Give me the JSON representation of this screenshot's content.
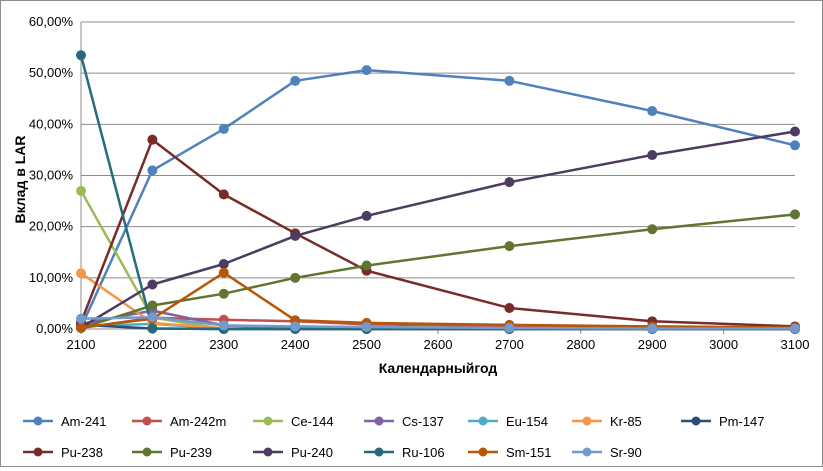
{
  "chart_data": {
    "type": "line",
    "title": "",
    "xlabel": "Календарныйгод",
    "ylabel": "Вклад в LAR",
    "x_ticks": [
      2100,
      2200,
      2300,
      2400,
      2500,
      2600,
      2700,
      2800,
      2900,
      3000,
      3100
    ],
    "y_ticks": [
      "0,00%",
      "10,00%",
      "20,00%",
      "30,00%",
      "40,00%",
      "50,00%",
      "60,00%"
    ],
    "xlim": [
      2100,
      3100
    ],
    "ylim": [
      0,
      60
    ],
    "y_unit": "%",
    "grid": "horizontal",
    "legend_position": "bottom",
    "series": [
      {
        "name": "Am-241",
        "color": "#4f81bd",
        "points": [
          [
            2100,
            0.3
          ],
          [
            2200,
            31.0
          ],
          [
            2300,
            39.1
          ],
          [
            2400,
            48.5
          ],
          [
            2500,
            50.6
          ],
          [
            2700,
            48.5
          ],
          [
            2900,
            42.6
          ],
          [
            3100,
            35.9
          ]
        ]
      },
      {
        "name": "Am-242m",
        "color": "#c0504d",
        "points": [
          [
            2100,
            0.2
          ],
          [
            2200,
            2.2
          ],
          [
            2300,
            1.8
          ],
          [
            2400,
            1.5
          ],
          [
            2500,
            0.9
          ],
          [
            2700,
            0.6
          ],
          [
            2900,
            0.4
          ],
          [
            3100,
            0.3
          ]
        ]
      },
      {
        "name": "Ce-144",
        "color": "#9bbb59",
        "points": [
          [
            2100,
            27.0
          ],
          [
            2200,
            2.2
          ],
          [
            2300,
            0.0
          ],
          [
            2400,
            0.0
          ],
          [
            2500,
            0.0
          ],
          [
            2700,
            0.0
          ],
          [
            2900,
            0.0
          ],
          [
            3100,
            0.0
          ]
        ]
      },
      {
        "name": "Cs-137",
        "color": "#8064a2",
        "points": [
          [
            2100,
            1.0
          ],
          [
            2200,
            3.6
          ],
          [
            2300,
            0.7
          ],
          [
            2400,
            0.1
          ],
          [
            2500,
            0.0
          ],
          [
            2700,
            0.0
          ],
          [
            2900,
            0.0
          ],
          [
            3100,
            0.0
          ]
        ]
      },
      {
        "name": "Eu-154",
        "color": "#4bacc6",
        "points": [
          [
            2100,
            0.5
          ],
          [
            2200,
            1.0
          ],
          [
            2300,
            0.1
          ],
          [
            2400,
            0.0
          ],
          [
            2500,
            0.0
          ],
          [
            2700,
            0.0
          ],
          [
            2900,
            0.0
          ],
          [
            3100,
            0.0
          ]
        ]
      },
      {
        "name": "Kr-85",
        "color": "#f79646",
        "points": [
          [
            2100,
            10.9
          ],
          [
            2200,
            1.2
          ],
          [
            2300,
            0.1
          ],
          [
            2400,
            0.0
          ],
          [
            2500,
            0.0
          ],
          [
            2700,
            0.0
          ],
          [
            2900,
            0.0
          ],
          [
            3100,
            0.0
          ]
        ]
      },
      {
        "name": "Pm-147",
        "color": "#2c4d75",
        "points": [
          [
            2100,
            0.8
          ],
          [
            2200,
            0.1
          ],
          [
            2300,
            0.0
          ],
          [
            2400,
            0.0
          ],
          [
            2500,
            0.0
          ],
          [
            2700,
            0.0
          ],
          [
            2900,
            0.0
          ],
          [
            3100,
            0.0
          ]
        ]
      },
      {
        "name": "Pu-238",
        "color": "#772c2a",
        "points": [
          [
            2100,
            1.3
          ],
          [
            2200,
            37.0
          ],
          [
            2300,
            26.3
          ],
          [
            2400,
            18.7
          ],
          [
            2500,
            11.4
          ],
          [
            2700,
            4.1
          ],
          [
            2900,
            1.5
          ],
          [
            3100,
            0.5
          ]
        ]
      },
      {
        "name": "Pu-239",
        "color": "#5f7530",
        "points": [
          [
            2100,
            0.2
          ],
          [
            2200,
            4.6
          ],
          [
            2300,
            6.9
          ],
          [
            2400,
            10.0
          ],
          [
            2500,
            12.4
          ],
          [
            2700,
            16.2
          ],
          [
            2900,
            19.5
          ],
          [
            3100,
            22.4
          ]
        ]
      },
      {
        "name": "Pu-240",
        "color": "#4d3b62",
        "points": [
          [
            2100,
            0.3
          ],
          [
            2200,
            8.7
          ],
          [
            2300,
            12.7
          ],
          [
            2400,
            18.2
          ],
          [
            2500,
            22.1
          ],
          [
            2700,
            28.7
          ],
          [
            2900,
            34.0
          ],
          [
            3100,
            38.6
          ]
        ]
      },
      {
        "name": "Ru-106",
        "color": "#276a7c",
        "points": [
          [
            2100,
            53.5
          ],
          [
            2200,
            0.1
          ],
          [
            2300,
            0.0
          ],
          [
            2400,
            0.0
          ],
          [
            2500,
            0.0
          ],
          [
            2700,
            0.0
          ],
          [
            2900,
            0.0
          ],
          [
            3100,
            0.0
          ]
        ]
      },
      {
        "name": "Sm-151",
        "color": "#b65708",
        "points": [
          [
            2100,
            0.3
          ],
          [
            2200,
            2.0
          ],
          [
            2300,
            11.0
          ],
          [
            2400,
            1.7
          ],
          [
            2500,
            1.2
          ],
          [
            2700,
            0.8
          ],
          [
            2900,
            0.5
          ],
          [
            3100,
            0.3
          ]
        ]
      },
      {
        "name": "Sr-90",
        "color": "#729aca",
        "points": [
          [
            2100,
            2.0
          ],
          [
            2200,
            2.3
          ],
          [
            2300,
            0.7
          ],
          [
            2400,
            0.5
          ],
          [
            2500,
            0.4
          ],
          [
            2700,
            0.2
          ],
          [
            2900,
            0.1
          ],
          [
            3100,
            0.1
          ]
        ]
      }
    ]
  }
}
